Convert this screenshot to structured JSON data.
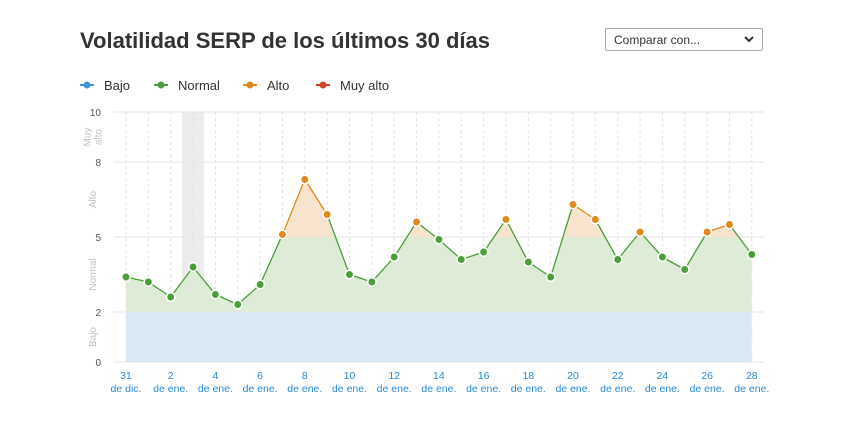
{
  "header": {
    "title": "Volatilidad SERP de los últimos 30 días",
    "compare_select": {
      "selected": "Comparar con..."
    }
  },
  "legend": [
    {
      "label": "Bajo",
      "color": "#3b95d5"
    },
    {
      "label": "Normal",
      "color": "#4c9e3a"
    },
    {
      "label": "Alto",
      "color": "#e08a1e"
    },
    {
      "label": "Muy alto",
      "color": "#d0422a"
    }
  ],
  "chart_data": {
    "type": "area",
    "x_labels": [
      [
        "31",
        "de dic."
      ],
      [
        "2",
        "de ene."
      ],
      [
        "4",
        "de ene."
      ],
      [
        "6",
        "de ene."
      ],
      [
        "8",
        "de ene."
      ],
      [
        "10",
        "de ene."
      ],
      [
        "12",
        "de ene."
      ],
      [
        "14",
        "de ene."
      ],
      [
        "16",
        "de ene."
      ],
      [
        "18",
        "de ene."
      ],
      [
        "20",
        "de ene."
      ],
      [
        "22",
        "de ene."
      ],
      [
        "24",
        "de ene."
      ],
      [
        "26",
        "de ene."
      ],
      [
        "28",
        "de ene."
      ]
    ],
    "y_ticks": [
      0,
      2,
      5,
      8,
      10
    ],
    "ylim": [
      0,
      10
    ],
    "zones": [
      {
        "name": "Bajo",
        "from": 0,
        "to": 2,
        "fill": "#dae8f6"
      },
      {
        "name": "Normal",
        "from": 2,
        "to": 5,
        "fill": "#deebd6"
      },
      {
        "name": "Alto",
        "from": 5,
        "to": 8,
        "fill": "#f8e3cf"
      },
      {
        "name": "Muy alto",
        "from": 8,
        "to": 10,
        "fill": "#fbe0dc"
      }
    ],
    "highlight_day": 3,
    "days": [
      31,
      1,
      2,
      3,
      4,
      5,
      6,
      7,
      8,
      9,
      10,
      11,
      12,
      13,
      14,
      15,
      16,
      17,
      18,
      19,
      20,
      21,
      22,
      23,
      24,
      25,
      26,
      27,
      28
    ],
    "values": [
      3.4,
      3.2,
      2.6,
      3.8,
      2.7,
      2.3,
      3.1,
      5.1,
      7.3,
      5.9,
      3.5,
      3.2,
      4.2,
      5.6,
      4.9,
      4.1,
      4.4,
      5.7,
      4.0,
      3.4,
      6.3,
      5.7,
      4.1,
      5.2,
      4.2,
      3.7,
      5.2,
      5.5,
      4.3
    ]
  }
}
